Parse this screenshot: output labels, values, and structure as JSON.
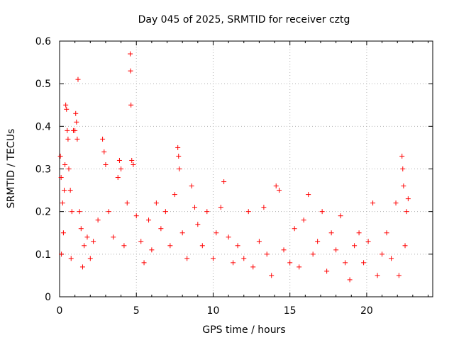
{
  "chart_data": {
    "type": "scatter",
    "title": "Day 045 of 2025, SRMTID for receiver cztg",
    "xlabel": "GPS time / hours",
    "ylabel": "SRMTID / TECUs",
    "xlim": [
      0,
      24.3
    ],
    "ylim": [
      0,
      0.6
    ],
    "x_ticks": [
      0,
      5,
      10,
      15,
      20
    ],
    "y_ticks": [
      0,
      0.1,
      0.2,
      0.3,
      0.4,
      0.5,
      0.6
    ],
    "x_tick_labels": [
      "0",
      "5",
      "10",
      "15",
      "20"
    ],
    "y_tick_labels": [
      "0",
      "0.1",
      "0.2",
      "0.3",
      "0.4",
      "0.5",
      "0.6"
    ],
    "grid": true,
    "marker": "+",
    "color": "#ff0000",
    "series": [
      {
        "name": "SRMTID",
        "points": [
          [
            0.05,
            0.33
          ],
          [
            0.1,
            0.28
          ],
          [
            0.12,
            0.1
          ],
          [
            0.2,
            0.22
          ],
          [
            0.25,
            0.15
          ],
          [
            0.3,
            0.25
          ],
          [
            0.35,
            0.31
          ],
          [
            0.4,
            0.45
          ],
          [
            0.45,
            0.44
          ],
          [
            0.5,
            0.39
          ],
          [
            0.55,
            0.37
          ],
          [
            0.6,
            0.3
          ],
          [
            0.7,
            0.25
          ],
          [
            0.75,
            0.09
          ],
          [
            0.8,
            0.2
          ],
          [
            0.9,
            0.39
          ],
          [
            1.0,
            0.39
          ],
          [
            1.05,
            0.43
          ],
          [
            1.1,
            0.41
          ],
          [
            1.15,
            0.37
          ],
          [
            1.2,
            0.51
          ],
          [
            1.3,
            0.2
          ],
          [
            1.4,
            0.16
          ],
          [
            1.5,
            0.07
          ],
          [
            1.6,
            0.12
          ],
          [
            1.8,
            0.14
          ],
          [
            2.0,
            0.09
          ],
          [
            2.2,
            0.13
          ],
          [
            2.5,
            0.18
          ],
          [
            2.8,
            0.37
          ],
          [
            2.9,
            0.34
          ],
          [
            3.0,
            0.31
          ],
          [
            3.2,
            0.2
          ],
          [
            3.5,
            0.14
          ],
          [
            3.8,
            0.28
          ],
          [
            3.9,
            0.32
          ],
          [
            4.0,
            0.3
          ],
          [
            4.2,
            0.12
          ],
          [
            4.4,
            0.22
          ],
          [
            4.6,
            0.57
          ],
          [
            4.62,
            0.53
          ],
          [
            4.65,
            0.45
          ],
          [
            4.7,
            0.32
          ],
          [
            4.8,
            0.31
          ],
          [
            5.0,
            0.19
          ],
          [
            5.3,
            0.13
          ],
          [
            5.5,
            0.08
          ],
          [
            5.8,
            0.18
          ],
          [
            6.0,
            0.11
          ],
          [
            6.3,
            0.22
          ],
          [
            6.6,
            0.16
          ],
          [
            6.9,
            0.2
          ],
          [
            7.2,
            0.12
          ],
          [
            7.5,
            0.24
          ],
          [
            7.7,
            0.35
          ],
          [
            7.75,
            0.33
          ],
          [
            7.8,
            0.3
          ],
          [
            8.0,
            0.15
          ],
          [
            8.3,
            0.09
          ],
          [
            8.6,
            0.26
          ],
          [
            8.8,
            0.21
          ],
          [
            9.0,
            0.17
          ],
          [
            9.3,
            0.12
          ],
          [
            9.6,
            0.2
          ],
          [
            10.0,
            0.09
          ],
          [
            10.2,
            0.15
          ],
          [
            10.5,
            0.21
          ],
          [
            10.7,
            0.27
          ],
          [
            11.0,
            0.14
          ],
          [
            11.3,
            0.08
          ],
          [
            11.6,
            0.12
          ],
          [
            12.0,
            0.09
          ],
          [
            12.3,
            0.2
          ],
          [
            12.6,
            0.07
          ],
          [
            13.0,
            0.13
          ],
          [
            13.3,
            0.21
          ],
          [
            13.5,
            0.1
          ],
          [
            13.8,
            0.05
          ],
          [
            14.1,
            0.26
          ],
          [
            14.3,
            0.25
          ],
          [
            14.6,
            0.11
          ],
          [
            15.0,
            0.08
          ],
          [
            15.3,
            0.16
          ],
          [
            15.6,
            0.07
          ],
          [
            15.9,
            0.18
          ],
          [
            16.2,
            0.24
          ],
          [
            16.5,
            0.1
          ],
          [
            16.8,
            0.13
          ],
          [
            17.1,
            0.2
          ],
          [
            17.4,
            0.06
          ],
          [
            17.7,
            0.15
          ],
          [
            18.0,
            0.11
          ],
          [
            18.3,
            0.19
          ],
          [
            18.6,
            0.08
          ],
          [
            18.9,
            0.04
          ],
          [
            19.2,
            0.12
          ],
          [
            19.5,
            0.15
          ],
          [
            19.8,
            0.08
          ],
          [
            20.1,
            0.13
          ],
          [
            20.4,
            0.22
          ],
          [
            20.7,
            0.05
          ],
          [
            21.0,
            0.1
          ],
          [
            21.3,
            0.15
          ],
          [
            21.6,
            0.09
          ],
          [
            21.9,
            0.22
          ],
          [
            22.1,
            0.05
          ],
          [
            22.3,
            0.33
          ],
          [
            22.35,
            0.3
          ],
          [
            22.4,
            0.26
          ],
          [
            22.5,
            0.12
          ],
          [
            22.6,
            0.2
          ],
          [
            22.7,
            0.23
          ]
        ]
      }
    ]
  }
}
